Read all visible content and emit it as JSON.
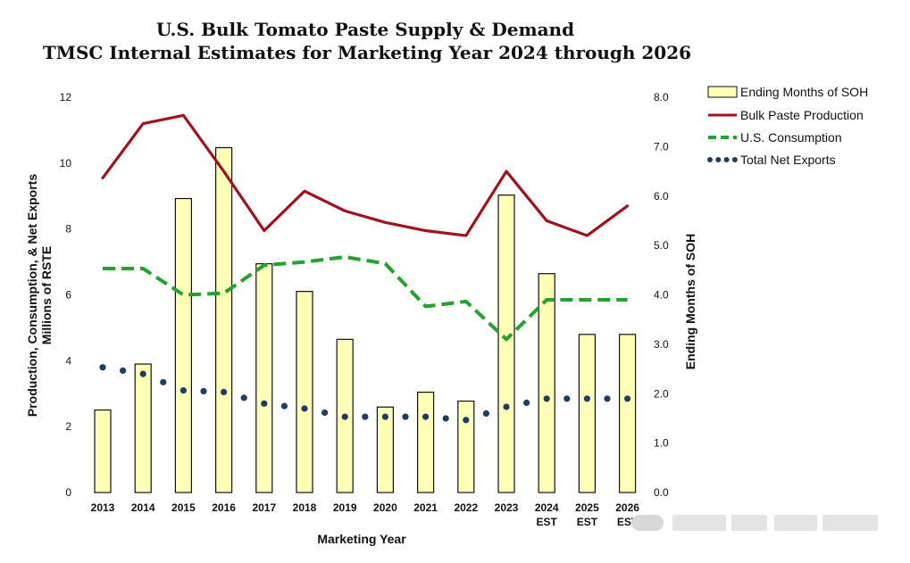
{
  "chart_data": {
    "type": "bar+line",
    "title_line1": "U.S. Bulk Tomato Paste Supply & Demand",
    "title_line2": "TMSC Internal Estimates for Marketing Year 2024 through 2026",
    "xlabel": "Marketing Year",
    "ylabel_left_line1": "Production, Consumption, & Net Exports",
    "ylabel_left_line2": "Millions of RSTE",
    "ylabel_right": "Ending Months of SOH",
    "ylim_left": [
      0,
      12
    ],
    "ylim_right": [
      0,
      8
    ],
    "left_ticks": [
      "0",
      "2",
      "4",
      "6",
      "8",
      "10",
      "12"
    ],
    "right_ticks": [
      "0.0",
      "1.0",
      "2.0",
      "3.0",
      "4.0",
      "5.0",
      "6.0",
      "7.0",
      "8.0"
    ],
    "categories": [
      {
        "year": "2013",
        "sub": ""
      },
      {
        "year": "2014",
        "sub": ""
      },
      {
        "year": "2015",
        "sub": ""
      },
      {
        "year": "2016",
        "sub": ""
      },
      {
        "year": "2017",
        "sub": ""
      },
      {
        "year": "2018",
        "sub": ""
      },
      {
        "year": "2019",
        "sub": ""
      },
      {
        "year": "2020",
        "sub": ""
      },
      {
        "year": "2021",
        "sub": ""
      },
      {
        "year": "2022",
        "sub": ""
      },
      {
        "year": "2023",
        "sub": ""
      },
      {
        "year": "2024",
        "sub": "EST"
      },
      {
        "year": "2025",
        "sub": "EST"
      },
      {
        "year": "2026",
        "sub": "EST"
      }
    ],
    "series": [
      {
        "name": "Ending Months of SOH",
        "kind": "bar",
        "axis": "right",
        "color": "#ffffb8",
        "stroke": "#111111",
        "values": [
          1.67,
          2.6,
          5.95,
          6.98,
          4.63,
          4.07,
          3.1,
          1.73,
          2.03,
          1.85,
          6.02,
          4.43,
          3.2,
          3.2
        ]
      },
      {
        "name": "Bulk Paste Production",
        "kind": "line",
        "axis": "left",
        "color": "#a3121c",
        "dash": "solid",
        "values": [
          9.55,
          11.2,
          11.45,
          9.75,
          7.95,
          9.15,
          8.55,
          8.2,
          7.95,
          7.8,
          9.75,
          8.25,
          7.8,
          8.7
        ]
      },
      {
        "name": "U.S. Consumption",
        "kind": "line",
        "axis": "left",
        "color": "#22a32c",
        "dash": "dashed",
        "values": [
          6.8,
          6.8,
          6.0,
          6.05,
          6.9,
          7.0,
          7.15,
          6.95,
          5.65,
          5.8,
          4.65,
          5.85,
          5.85,
          5.85
        ]
      },
      {
        "name": "Total Net Exports",
        "kind": "line",
        "axis": "left",
        "color": "#1d3d66",
        "dash": "dotted",
        "values": [
          3.8,
          3.6,
          3.1,
          3.05,
          2.7,
          2.55,
          2.3,
          2.3,
          2.3,
          2.2,
          2.6,
          2.85,
          2.85,
          2.85
        ]
      }
    ],
    "legend_position": "right",
    "grid": false
  }
}
